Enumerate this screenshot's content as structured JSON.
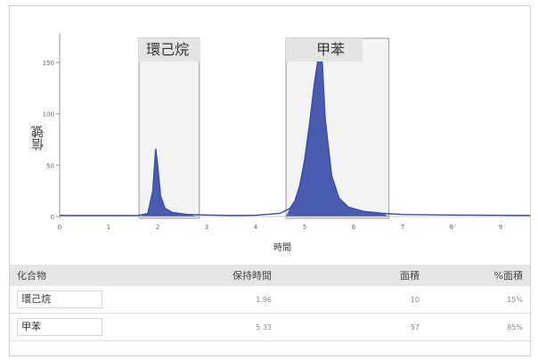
{
  "colors": {
    "peak_fill": "#4a5cb0",
    "peak_line": "#3a4aa0",
    "tab_bg": "#e4e4e4",
    "header_bg": "#e6e6e6"
  },
  "axis": {
    "ylabel": "信號",
    "xlabel": "時間"
  },
  "chart_data": {
    "type": "line",
    "title": "",
    "xlabel": "時間",
    "ylabel": "信號",
    "xlim": [
      0,
      9.6
    ],
    "ylim": [
      -5,
      170
    ],
    "x_ticks": [
      "0",
      "1",
      "2",
      "3",
      "4",
      "5",
      "6",
      "7",
      "8",
      "9"
    ],
    "y_ticks": [
      "0",
      "50",
      "100",
      "150"
    ],
    "series": [
      {
        "x": [
          0,
          1.0,
          1.6,
          1.8,
          1.9,
          1.96,
          2.0,
          2.06,
          2.15,
          2.3,
          2.6,
          3.0,
          3.5,
          4.0,
          4.5,
          4.7,
          4.8,
          4.9,
          5.0,
          5.1,
          5.2,
          5.28,
          5.33,
          5.36,
          5.42,
          5.55,
          5.7,
          5.9,
          6.2,
          6.6,
          7.0,
          8.0,
          9.6
        ],
        "y": [
          1,
          1,
          1,
          3,
          25,
          66,
          50,
          20,
          8,
          4,
          2,
          1.5,
          1,
          1.2,
          3,
          8,
          15,
          30,
          55,
          90,
          130,
          155,
          157,
          150,
          95,
          40,
          18,
          9,
          5,
          3,
          2,
          1.5,
          1
        ]
      }
    ],
    "peak_regions": [
      {
        "label": "環己烷",
        "start": 1.62,
        "end": 2.85
      },
      {
        "label": "甲苯",
        "start": 4.62,
        "end": 6.72
      }
    ]
  },
  "peaks": [
    {
      "label": "環己烷",
      "close": ""
    },
    {
      "label": "甲苯",
      "close": "×"
    }
  ],
  "table": {
    "headers": [
      "化合物",
      "保持時間",
      "面積",
      "%面積"
    ],
    "rows": [
      {
        "compound": "環己烷",
        "retention": "1.96",
        "area": "10",
        "pct": "15%"
      },
      {
        "compound": "甲苯",
        "retention": "5.33",
        "area": "57",
        "pct": "85%"
      }
    ]
  }
}
